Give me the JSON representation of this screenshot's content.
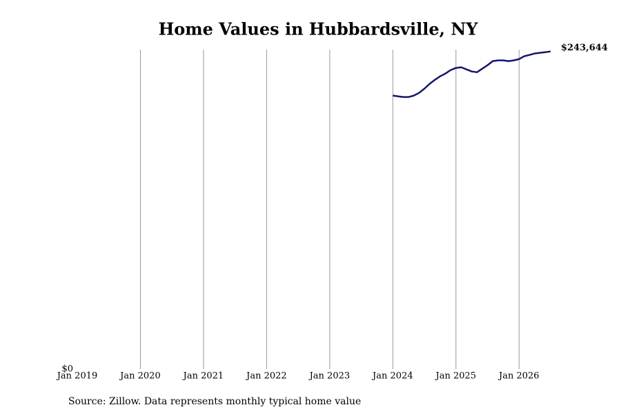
{
  "chart_data": {
    "type": "line",
    "title": "Home Values in Hubbardsville, NY",
    "source": "Source: Zillow. Data represents monthly typical home value",
    "x": [
      "2024-01",
      "2024-02",
      "2024-03",
      "2024-04",
      "2024-05",
      "2024-06",
      "2024-07",
      "2024-08",
      "2024-09",
      "2024-10",
      "2024-11",
      "2024-12",
      "2025-01",
      "2025-02",
      "2025-03",
      "2025-04",
      "2025-05",
      "2025-06",
      "2025-07",
      "2025-08",
      "2025-09",
      "2025-10",
      "2025-11",
      "2025-12",
      "2026-01",
      "2026-02",
      "2026-03",
      "2026-04",
      "2026-05",
      "2026-06",
      "2026-07"
    ],
    "series": [
      {
        "name": "Typical home value",
        "color": "#14146b",
        "values": [
          209800,
          209200,
          208700,
          208700,
          209800,
          211900,
          215100,
          218800,
          221900,
          224600,
          226700,
          229400,
          231000,
          231500,
          229900,
          228300,
          227700,
          230400,
          233100,
          236200,
          236800,
          236800,
          236200,
          236800,
          237800,
          240000,
          241000,
          242100,
          242600,
          243100,
          243644
        ],
        "value_labels": [
          null,
          null,
          null,
          null,
          null,
          null,
          null,
          null,
          null,
          null,
          null,
          null,
          null,
          null,
          null,
          null,
          null,
          null,
          null,
          null,
          null,
          null,
          null,
          null,
          null,
          null,
          null,
          null,
          null,
          null,
          "$243,644"
        ]
      }
    ],
    "xlim": [
      "2019-01",
      "2026-07"
    ],
    "xticks": [
      {
        "value": "2019-01",
        "label": "Jan 2019"
      },
      {
        "value": "2020-01",
        "label": "Jan 2020"
      },
      {
        "value": "2021-01",
        "label": "Jan 2021"
      },
      {
        "value": "2022-01",
        "label": "Jan 2022"
      },
      {
        "value": "2023-01",
        "label": "Jan 2023"
      },
      {
        "value": "2024-01",
        "label": "Jan 2024"
      },
      {
        "value": "2025-01",
        "label": "Jan 2025"
      },
      {
        "value": "2026-01",
        "label": "Jan 2026"
      }
    ],
    "ylim": [
      0,
      245000
    ],
    "yticks": [
      {
        "value": 0,
        "label": "$0"
      }
    ],
    "grid": "x"
  }
}
